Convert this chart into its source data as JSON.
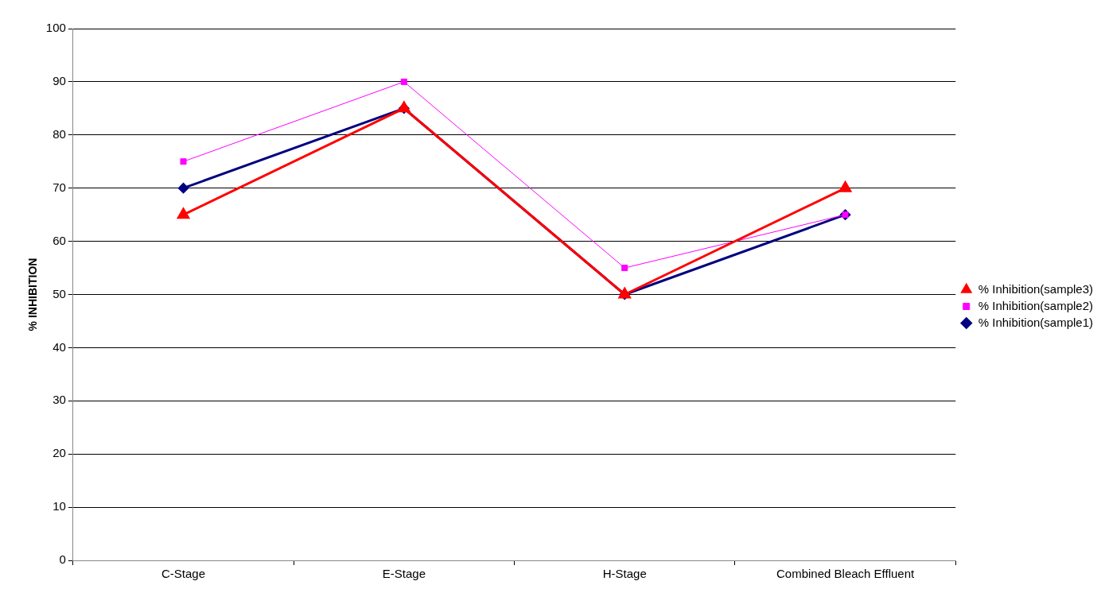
{
  "chart_data": {
    "type": "line",
    "ylabel": "% INHIBITION",
    "categories": [
      "C-Stage",
      "E-Stage",
      "H-Stage",
      "Combined Bleach Effluent"
    ],
    "series": [
      {
        "name": "% Inhibition(sample1)",
        "color": "#000080",
        "marker": "diamond",
        "values": [
          70,
          85,
          50,
          65
        ]
      },
      {
        "name": "% Inhibition(sample2)",
        "color": "#ff00ff",
        "marker": "square",
        "values": [
          75,
          90,
          55,
          65
        ]
      },
      {
        "name": "% Inhibition(sample3)",
        "color": "#ff0000",
        "marker": "triangle",
        "values": [
          65,
          85,
          50,
          70
        ]
      }
    ],
    "ylim": [
      0,
      100
    ],
    "yticks": [
      0,
      10,
      20,
      30,
      40,
      50,
      60,
      70,
      80,
      90,
      100
    ],
    "grid": "y",
    "legend": "right",
    "line_style": "solid"
  }
}
